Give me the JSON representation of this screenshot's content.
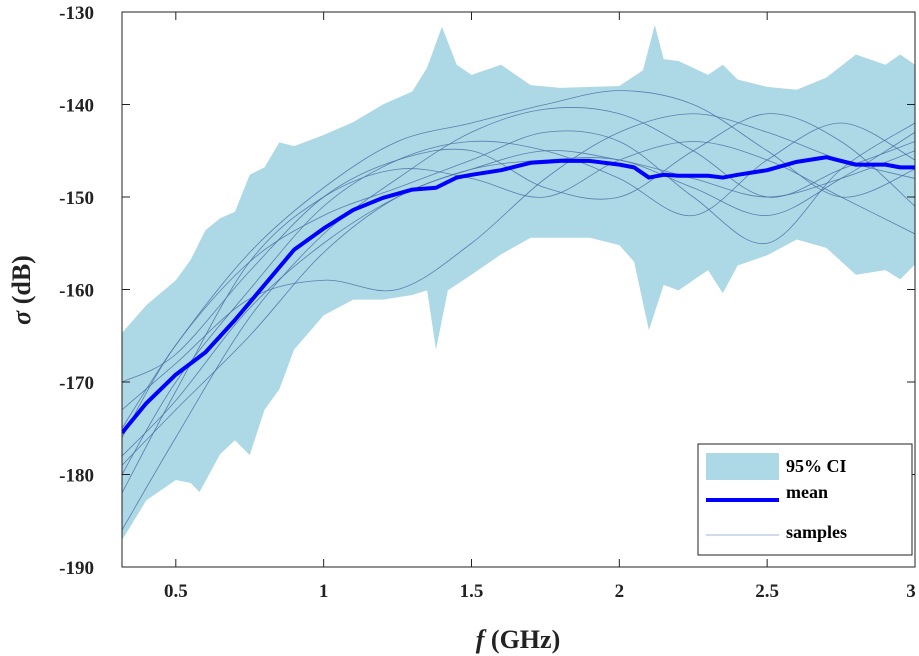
{
  "chart_data": {
    "type": "line",
    "title": "",
    "xlabel_var": "f",
    "xlabel_unit": " (GHz)",
    "ylabel_var": "σ",
    "ylabel_unit": " (dB)",
    "xlim": [
      0.318,
      3.0
    ],
    "ylim": [
      -190,
      -130
    ],
    "xticks": [
      0.5,
      1,
      1.5,
      2,
      2.5,
      3
    ],
    "xtick_labels": [
      "0.5",
      "1",
      "1.5",
      "2",
      "2.5",
      "3"
    ],
    "yticks": [
      -130,
      -140,
      -150,
      -160,
      -170,
      -180,
      -190
    ],
    "ytick_labels": [
      "-130",
      "-140",
      "-150",
      "-160",
      "-170",
      "-180",
      "-190"
    ],
    "grid": false,
    "legend_position": "bottom-right",
    "legend": [
      "95% CI",
      "mean",
      "samples"
    ],
    "colors": {
      "ci": "#add8e6",
      "mean": "#0000ff",
      "samples": "#4a6fa5"
    },
    "ci": {
      "upper": {
        "x": [
          0.318,
          0.4,
          0.5,
          0.55,
          0.6,
          0.65,
          0.7,
          0.75,
          0.8,
          0.85,
          0.9,
          1.0,
          1.1,
          1.2,
          1.3,
          1.35,
          1.4,
          1.45,
          1.5,
          1.6,
          1.7,
          1.8,
          2.0,
          2.08,
          2.12,
          2.15,
          2.2,
          2.3,
          2.35,
          2.4,
          2.5,
          2.6,
          2.7,
          2.8,
          2.9,
          2.95,
          3.0
        ],
        "y": [
          -164.7,
          -161.7,
          -159,
          -156.8,
          -153.6,
          -152.3,
          -151.6,
          -147.6,
          -146.8,
          -144.1,
          -144.5,
          -143.3,
          -141.9,
          -140,
          -138.6,
          -136,
          -131.6,
          -135.7,
          -136.8,
          -135.7,
          -137.9,
          -138.2,
          -138,
          -136.3,
          -131.4,
          -135.1,
          -135.3,
          -136.8,
          -135.7,
          -137.3,
          -138.1,
          -138.4,
          -137.1,
          -134.6,
          -135.7,
          -134.6,
          -135.7
        ]
      },
      "lower": {
        "x": [
          0.318,
          0.4,
          0.5,
          0.55,
          0.58,
          0.65,
          0.7,
          0.75,
          0.8,
          0.85,
          0.9,
          1.0,
          1.1,
          1.2,
          1.3,
          1.35,
          1.38,
          1.42,
          1.5,
          1.6,
          1.7,
          1.9,
          2.0,
          2.05,
          2.1,
          2.15,
          2.2,
          2.3,
          2.35,
          2.4,
          2.5,
          2.6,
          2.7,
          2.8,
          2.9,
          2.95,
          3.0
        ],
        "y": [
          -187.1,
          -182.8,
          -180.6,
          -180.9,
          -181.9,
          -177.8,
          -176.3,
          -177.9,
          -173,
          -170.8,
          -166.5,
          -162.8,
          -161.1,
          -161.1,
          -160.6,
          -160.1,
          -166.5,
          -160.1,
          -158.4,
          -156.2,
          -154.4,
          -154.4,
          -155.2,
          -157,
          -164.4,
          -159.5,
          -160.1,
          -157.9,
          -160.4,
          -157.4,
          -156.3,
          -154.6,
          -155.5,
          -158.4,
          -157.9,
          -158.9,
          -157.3
        ]
      }
    },
    "mean": {
      "x": [
        0.318,
        0.4,
        0.5,
        0.6,
        0.7,
        0.8,
        0.9,
        1.0,
        1.1,
        1.2,
        1.3,
        1.38,
        1.45,
        1.5,
        1.6,
        1.7,
        1.8,
        1.9,
        2.0,
        2.05,
        2.1,
        2.15,
        2.2,
        2.3,
        2.35,
        2.4,
        2.5,
        2.6,
        2.7,
        2.8,
        2.9,
        2.95,
        3.0
      ],
      "y": [
        -175.5,
        -172.3,
        -169.2,
        -166.8,
        -163.3,
        -159.5,
        -155.7,
        -153.4,
        -151.4,
        -150.1,
        -149.2,
        -149,
        -147.9,
        -147.6,
        -147.1,
        -146.3,
        -146.1,
        -146.1,
        -146.5,
        -146.8,
        -147.9,
        -147.6,
        -147.7,
        -147.7,
        -147.9,
        -147.6,
        -147.1,
        -146.2,
        -145.7,
        -146.5,
        -146.5,
        -146.8,
        -146.8
      ]
    },
    "samples": {
      "x": [
        0.318,
        0.5,
        0.75,
        1.0,
        1.25,
        1.5,
        1.75,
        2.0,
        2.25,
        2.5,
        2.75,
        3.0
      ],
      "series": [
        [
          -175,
          -166,
          -156,
          -149,
          -144,
          -142,
          -140,
          -138.5,
          -140,
          -145,
          -150,
          -147
        ],
        [
          -180,
          -170,
          -160,
          -151,
          -146,
          -144,
          -145,
          -148,
          -152,
          -146,
          -142,
          -146
        ],
        [
          -170,
          -167,
          -158,
          -150,
          -146,
          -145,
          -149,
          -150,
          -145,
          -141,
          -144,
          -151
        ],
        [
          -178,
          -172,
          -162,
          -155,
          -150,
          -147,
          -146,
          -146,
          -149,
          -152,
          -148,
          -143
        ],
        [
          -186,
          -176,
          -163,
          -154,
          -148,
          -143,
          -140.5,
          -141,
          -145,
          -150,
          -147,
          -144
        ],
        [
          -173,
          -168,
          -161,
          -159,
          -160,
          -155,
          -148,
          -143,
          -141,
          -143,
          -146,
          -148
        ],
        [
          -182,
          -171,
          -157,
          -150,
          -147,
          -148,
          -150,
          -146,
          -144,
          -146,
          -150,
          -154
        ],
        [
          -176,
          -166,
          -157,
          -152,
          -149,
          -146,
          -143,
          -144,
          -150,
          -155,
          -147,
          -142
        ],
        [
          -179,
          -173,
          -165,
          -156,
          -150,
          -147,
          -145,
          -146,
          -148,
          -150,
          -148,
          -145
        ]
      ]
    }
  }
}
